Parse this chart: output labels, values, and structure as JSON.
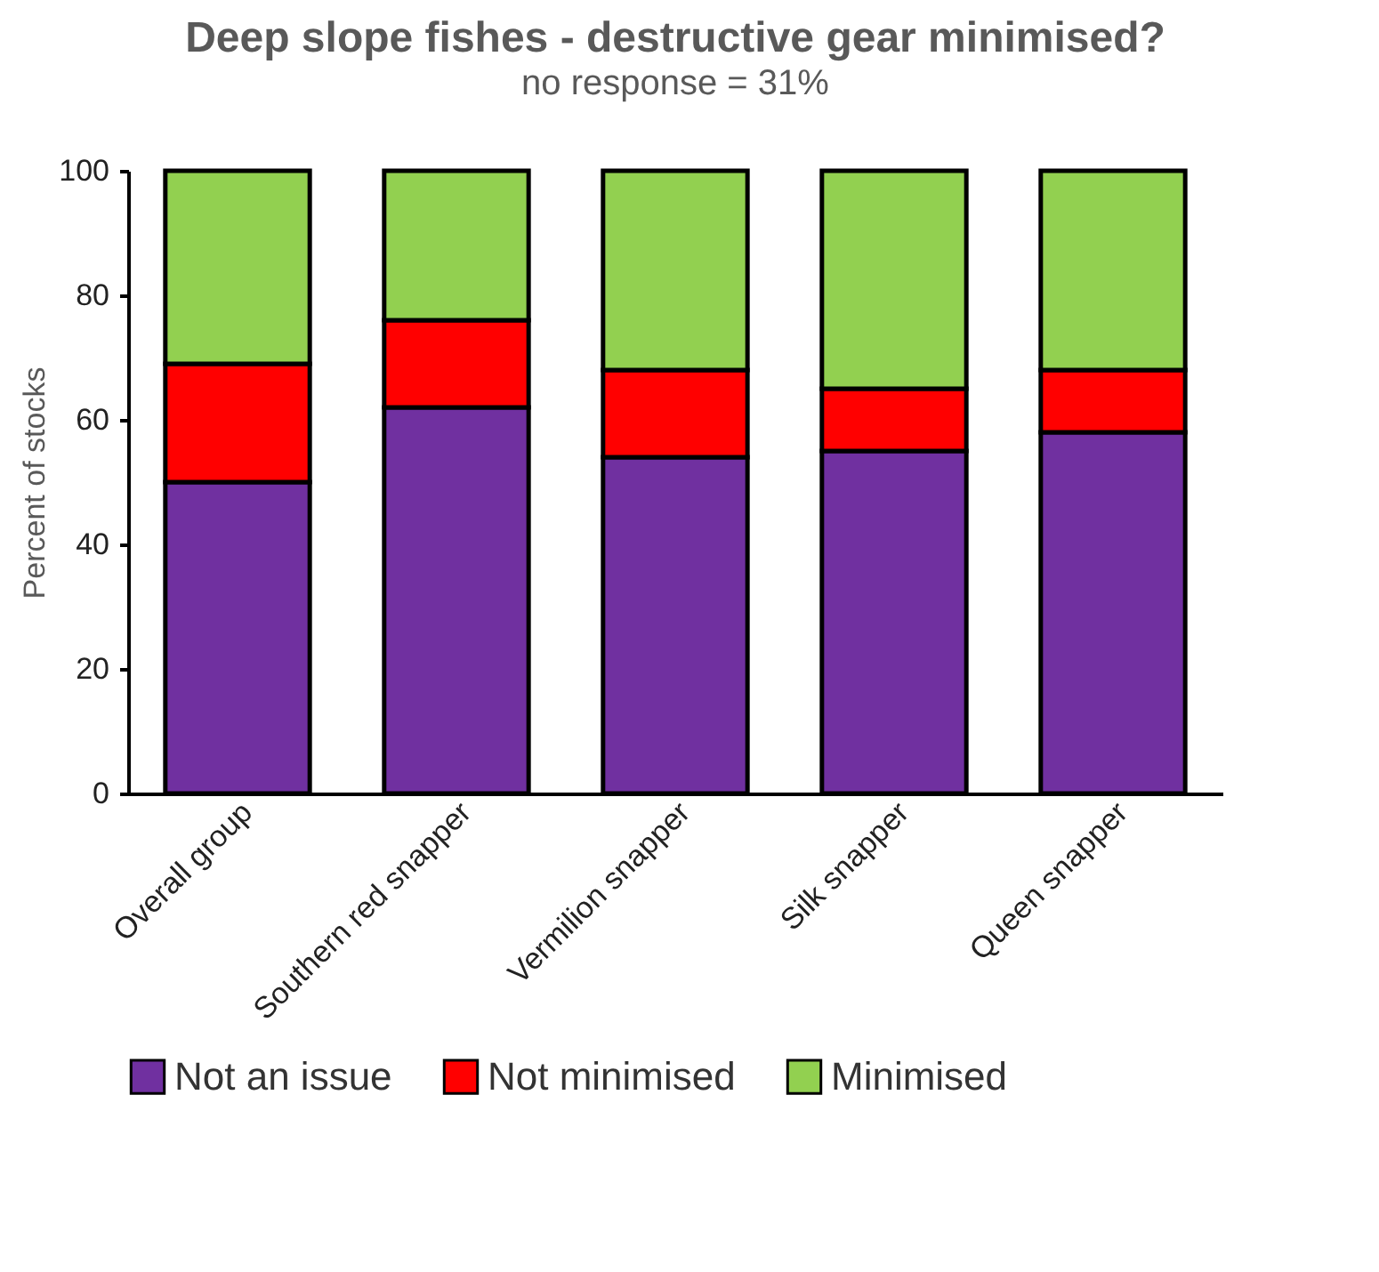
{
  "chart_data": {
    "type": "bar",
    "stacked": true,
    "title": "Deep slope fishes - destructive gear minimised?",
    "subtitle": "no response = 31%",
    "ylabel": "Percent of stocks",
    "categories": [
      "Overall group",
      "Southern red snapper",
      "Vermilion snapper",
      "Silk snapper",
      "Queen snapper"
    ],
    "series": [
      {
        "name": "Not an issue",
        "color": "#7030a0",
        "values": [
          50,
          62,
          54,
          55,
          58
        ]
      },
      {
        "name": "Not minimised",
        "color": "#ff0000",
        "values": [
          19,
          14,
          14,
          10,
          10
        ]
      },
      {
        "name": "Minimised",
        "color": "#92d050",
        "values": [
          31,
          24,
          32,
          35,
          32
        ]
      }
    ],
    "ylim": [
      0,
      100
    ],
    "yticks": [
      0,
      20,
      40,
      60,
      80,
      100
    ],
    "grid": false,
    "legend": "bottom"
  }
}
